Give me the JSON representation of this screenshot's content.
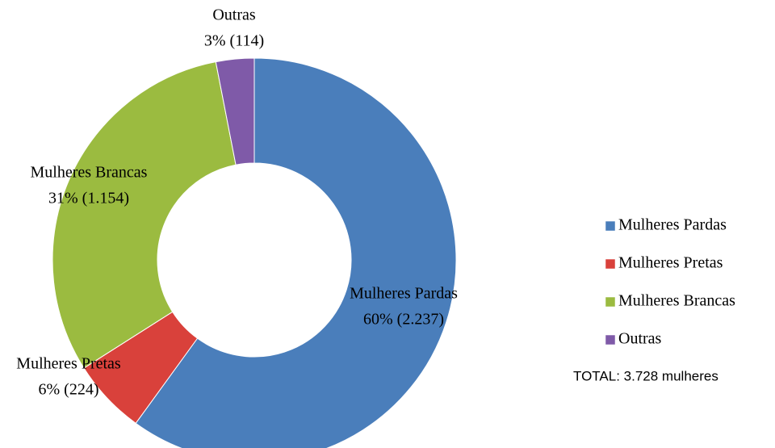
{
  "chart_data": {
    "type": "donut",
    "categories": [
      "Mulheres Pardas",
      "Mulheres Pretas",
      "Mulheres Brancas",
      "Outras"
    ],
    "values": [
      2237,
      224,
      1154,
      114
    ],
    "value_labels": [
      "60% (2.237)",
      "6% (224)",
      "31% (1.154)",
      "3% (114)"
    ],
    "colors": [
      "#4a7ebb",
      "#d9413b",
      "#9bbb40",
      "#7f5aa8"
    ],
    "legend": "right",
    "annotation": "TOTAL: 3.728 mulheres"
  }
}
